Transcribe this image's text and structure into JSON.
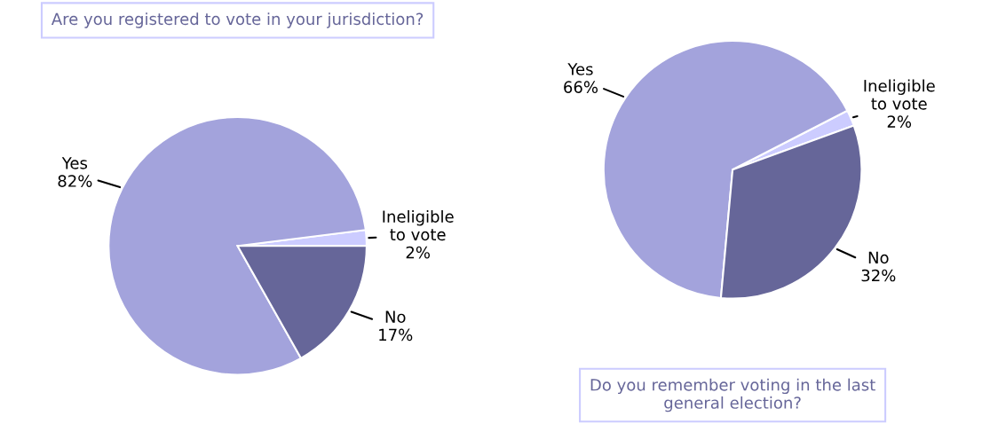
{
  "chart_data": [
    {
      "type": "pie",
      "title": "Are you registered to vote in your jurisdiction?",
      "categories": [
        "Ineligible\nto vote",
        "Yes",
        "No"
      ],
      "values": [
        2,
        82,
        17
      ],
      "value_labels": [
        "2%",
        "82%",
        "17%"
      ],
      "colors": [
        "#ccccff",
        "#a3a3dc",
        "#666699"
      ],
      "legend": false
    },
    {
      "type": "pie",
      "title": "Do you remember voting in the last\ngeneral election?",
      "categories": [
        "Ineligible\nto vote",
        "Yes",
        "No"
      ],
      "values": [
        2,
        66,
        32
      ],
      "value_labels": [
        "2%",
        "66%",
        "32%"
      ],
      "colors": [
        "#ccccff",
        "#a3a3dc",
        "#666699"
      ],
      "legend": false
    }
  ]
}
